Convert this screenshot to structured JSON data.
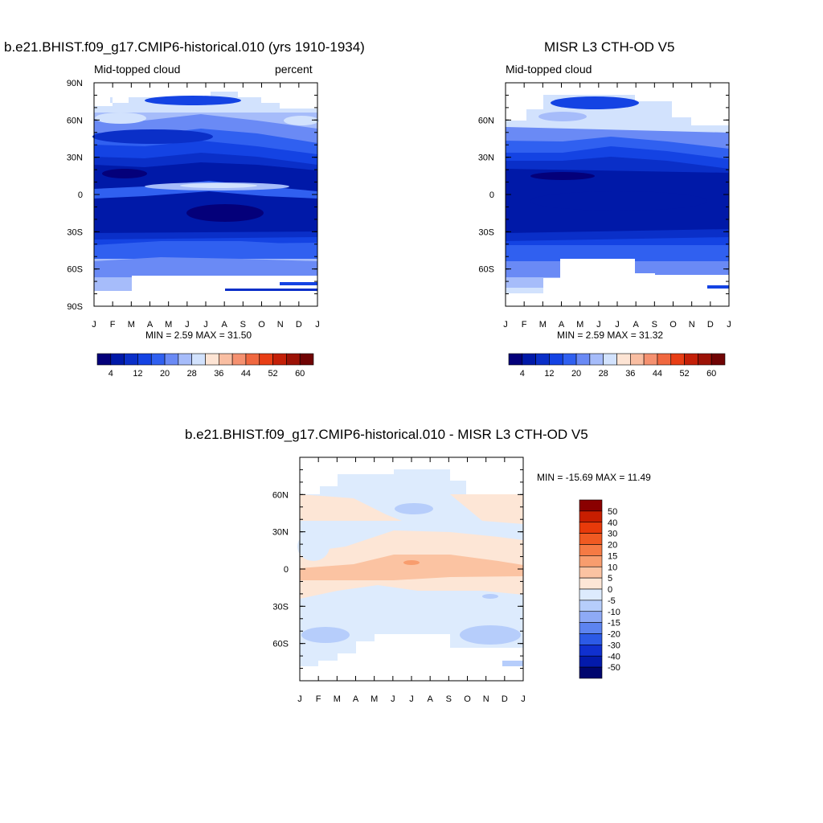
{
  "panels": [
    {
      "title": "b.e21.BHIST.f09_g17.CMIP6-historical.010 (yrs 1910-1934)",
      "subtitle_left": "Mid-topped cloud",
      "subtitle_right": "percent",
      "stats": "MIN =   2.59 MAX =  31.50",
      "lat_ticks": [
        "90N",
        "60N",
        "30N",
        "0",
        "30S",
        "60S",
        "90S"
      ],
      "month_ticks": [
        "J",
        "F",
        "M",
        "A",
        "M",
        "J",
        "J",
        "A",
        "S",
        "O",
        "N",
        "D",
        "J"
      ]
    },
    {
      "title": "MISR L3 CTH-OD V5",
      "subtitle_left": "Mid-topped cloud",
      "subtitle_right": "",
      "stats": "MIN =   2.59 MAX =  31.32",
      "lat_ticks": [
        "60N",
        "30N",
        "0",
        "30S",
        "60S"
      ],
      "month_ticks": [
        "J",
        "F",
        "M",
        "A",
        "M",
        "J",
        "J",
        "A",
        "S",
        "O",
        "N",
        "D",
        "J"
      ]
    },
    {
      "title": "b.e21.BHIST.f09_g17.CMIP6-historical.010 - MISR L3 CTH-OD V5",
      "stats": "MIN = -15.69 MAX =  11.49",
      "lat_ticks": [
        "60N",
        "30N",
        "0",
        "30S",
        "60S"
      ],
      "month_ticks": [
        "J",
        "F",
        "M",
        "A",
        "M",
        "J",
        "J",
        "A",
        "S",
        "O",
        "N",
        "D",
        "J"
      ]
    }
  ],
  "colorbar_fields": {
    "labels": [
      "4",
      "12",
      "20",
      "28",
      "36",
      "44",
      "52",
      "60"
    ],
    "colors": [
      "#04007a",
      "#0019a8",
      "#0a2fc8",
      "#1443e3",
      "#3060f0",
      "#6a8af5",
      "#a6bcfa",
      "#d2e2fd",
      "#fde4d4",
      "#f9bea2",
      "#f59170",
      "#f06840",
      "#e83e15",
      "#c42008",
      "#9c1206",
      "#700404"
    ]
  },
  "colorbar_diff": {
    "labels": [
      "50",
      "40",
      "30",
      "20",
      "15",
      "10",
      "5",
      "0",
      "-5",
      "-10",
      "-15",
      "-20",
      "-30",
      "-40",
      "-50"
    ],
    "colors": [
      "#8a0000",
      "#c81e00",
      "#e83a0a",
      "#f05a22",
      "#f57a44",
      "#f89d6e",
      "#fbc3a2",
      "#fde6d6",
      "#ddebfd",
      "#b6cdfb",
      "#8eaaf6",
      "#5d84f0",
      "#2c5ae6",
      "#1030cf",
      "#031aab",
      "#00066e"
    ]
  },
  "chart_data": [
    {
      "type": "heatmap",
      "title": "b.e21.BHIST.f09_g17.CMIP6-historical.010 (yrs 1910-1934)",
      "field": "Mid-topped cloud",
      "units": "percent",
      "x": [
        "J",
        "F",
        "M",
        "A",
        "M",
        "J",
        "J",
        "A",
        "S",
        "O",
        "N",
        "D",
        "J"
      ],
      "y_range": [
        -90,
        90
      ],
      "min": 2.59,
      "max": 31.5,
      "levels": [
        4,
        8,
        12,
        16,
        20,
        24,
        28,
        32,
        36,
        40,
        44,
        48,
        52,
        56,
        60
      ]
    },
    {
      "type": "heatmap",
      "title": "MISR L3 CTH-OD V5",
      "field": "Mid-topped cloud",
      "x": [
        "J",
        "F",
        "M",
        "A",
        "M",
        "J",
        "J",
        "A",
        "S",
        "O",
        "N",
        "D",
        "J"
      ],
      "y_range": [
        -90,
        90
      ],
      "min": 2.59,
      "max": 31.32,
      "levels": [
        4,
        8,
        12,
        16,
        20,
        24,
        28,
        32,
        36,
        40,
        44,
        48,
        52,
        56,
        60
      ]
    },
    {
      "type": "heatmap",
      "title": "b.e21.BHIST.f09_g17.CMIP6-historical.010 - MISR L3 CTH-OD V5",
      "x": [
        "J",
        "F",
        "M",
        "A",
        "M",
        "J",
        "J",
        "A",
        "S",
        "O",
        "N",
        "D",
        "J"
      ],
      "y_range": [
        -90,
        90
      ],
      "min": -15.69,
      "max": 11.49,
      "levels": [
        -50,
        -40,
        -30,
        -20,
        -15,
        -10,
        -5,
        0,
        5,
        10,
        15,
        20,
        30,
        40,
        50
      ]
    }
  ]
}
